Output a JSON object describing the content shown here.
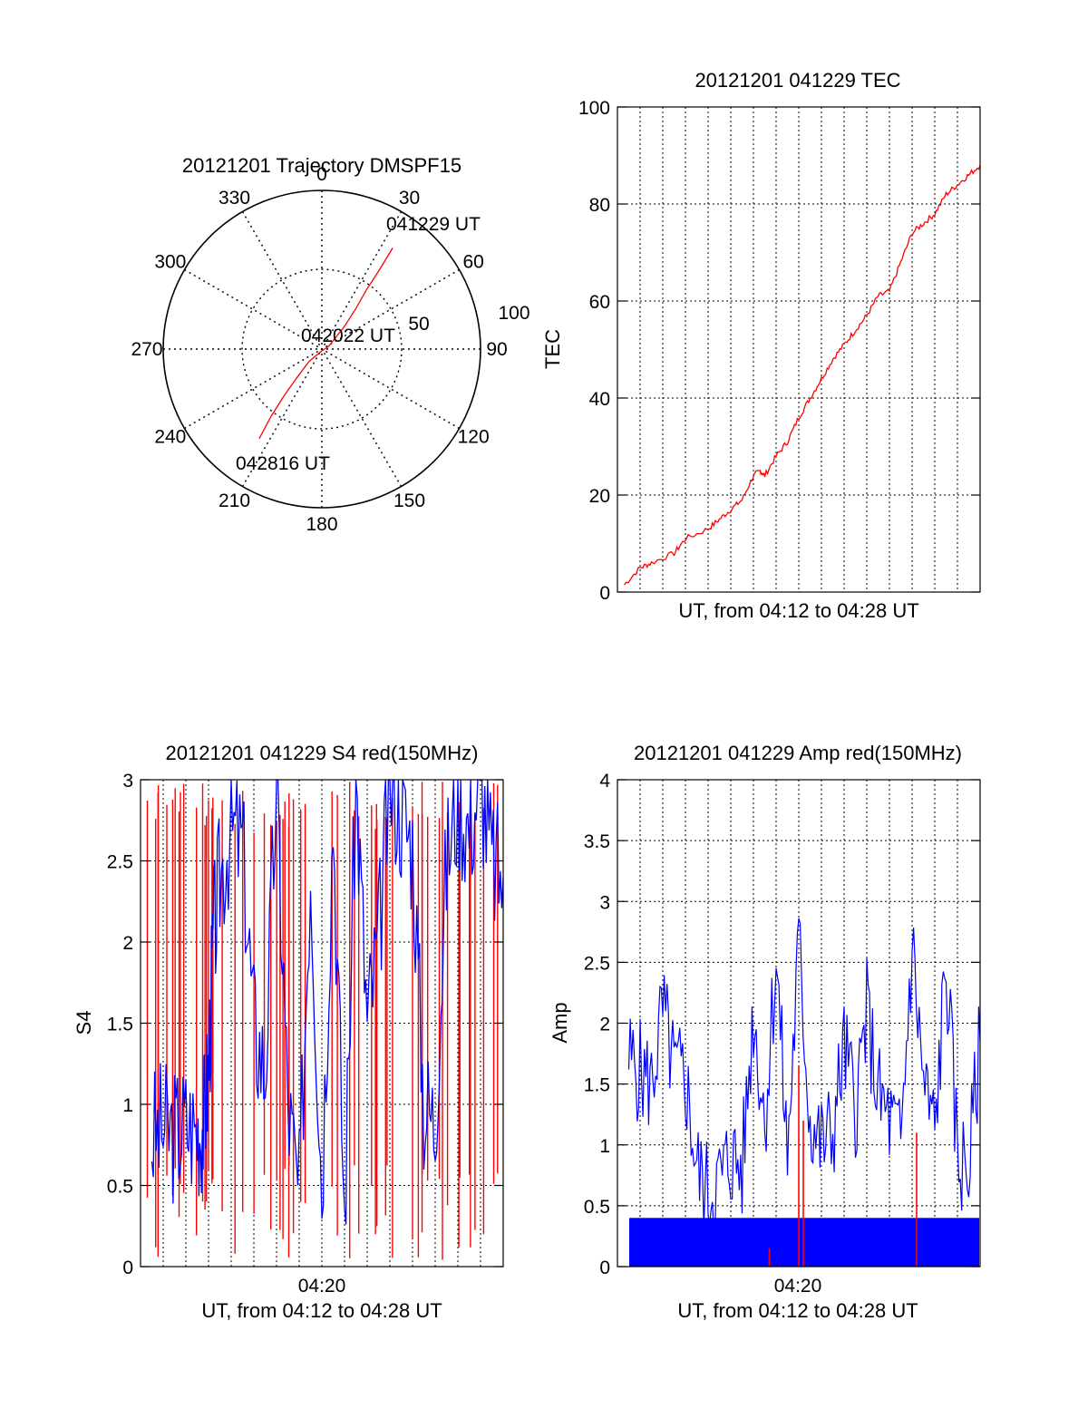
{
  "colors": {
    "primary": "#ff0000",
    "secondary": "#0000ff",
    "axis": "#000000"
  },
  "chart_data": [
    {
      "type": "polar",
      "title": "20121201 Trajectory DMSPF15",
      "angle_ticks": [
        "0",
        "30",
        "60",
        "90",
        "120",
        "150",
        "180",
        "210",
        "240",
        "270",
        "300",
        "330"
      ],
      "radial_ticks": [
        "50",
        "100"
      ],
      "grid": true,
      "annotations": [
        "041229 UT",
        "042022 UT",
        "042816 UT"
      ],
      "series": [
        {
          "color": "#ff0000",
          "points": [
            {
              "azimuth": 35,
              "elevation": 20
            },
            {
              "azimuth": 36,
              "elevation": 35
            },
            {
              "azimuth": 37,
              "elevation": 48
            },
            {
              "azimuth": 40,
              "elevation": 60
            },
            {
              "azimuth": 45,
              "elevation": 72
            },
            {
              "azimuth": 70,
              "elevation": 86
            },
            {
              "azimuth": 180,
              "elevation": 89
            },
            {
              "azimuth": 226,
              "elevation": 80
            },
            {
              "azimuth": 221,
              "elevation": 68
            },
            {
              "azimuth": 219,
              "elevation": 56
            },
            {
              "azimuth": 217,
              "elevation": 42
            },
            {
              "azimuth": 215,
              "elevation": 28
            }
          ]
        }
      ]
    },
    {
      "type": "line",
      "title": "20121201 041229 TEC",
      "xlabel": "UT, from 04:12 to 04:28 UT",
      "ylabel": "TEC",
      "xlim": [
        0,
        16
      ],
      "ylim": [
        0,
        100
      ],
      "yticks": [
        "0",
        "20",
        "40",
        "60",
        "80",
        "100"
      ],
      "grid": true,
      "series": [
        {
          "color": "#ff0000",
          "x": [
            0.3,
            1.0,
            1.5,
            2.5,
            3.0,
            4.0,
            4.5,
            5.0,
            5.5,
            6.0,
            6.3,
            6.5,
            7.0,
            7.5,
            8.0,
            8.5,
            9.0,
            9.5,
            10.0,
            10.5,
            11.0,
            11.5,
            12.0,
            12.5,
            13.0,
            13.5,
            14.0,
            14.5,
            15.0,
            15.5,
            16.0
          ],
          "y": [
            1.5,
            5,
            6,
            8,
            11,
            13,
            15,
            17,
            19,
            24,
            25,
            24,
            28,
            31,
            36,
            40,
            44,
            48,
            51,
            54,
            57,
            61,
            62,
            68,
            74,
            76,
            78,
            82,
            84,
            86,
            88
          ]
        }
      ]
    },
    {
      "type": "line",
      "title": "20121201 041229 S4 red(150MHz)",
      "xlabel": "UT, from 04:12 to 04:28 UT",
      "ylabel": "S4",
      "xlim": [
        0,
        16
      ],
      "ylim": [
        0,
        3
      ],
      "xticks": [
        "04:20"
      ],
      "yticks": [
        "0",
        "0.5",
        "1",
        "1.5",
        "2",
        "2.5",
        "3"
      ],
      "grid": true,
      "series": [
        {
          "color": "#0000ff",
          "x": [
            0.5,
            1.0,
            1.5,
            2.0,
            2.5,
            2.8,
            3.0,
            3.2,
            3.5,
            4.0,
            4.5,
            5.0,
            5.5,
            6.0,
            6.5,
            7.0,
            7.5,
            8.0,
            8.5,
            9.0,
            9.5,
            10.0,
            10.5,
            11.0,
            11.5,
            12.0,
            12.5,
            13.0,
            13.5,
            14.0,
            14.5,
            15.0,
            15.5,
            16.0
          ],
          "y": [
            0.8,
            0.85,
            0.82,
            0.88,
            0.85,
            0.9,
            1.2,
            2.0,
            2.4,
            2.7,
            2.6,
            1.5,
            1.2,
            3.0,
            1.0,
            0.4,
            2.5,
            0.5,
            2.8,
            0.3,
            3.0,
            1.5,
            2.0,
            3.0,
            2.8,
            2.6,
            1.0,
            0.9,
            2.5,
            2.9,
            2.7,
            3.0,
            2.5,
            2.4
          ]
        }
      ]
    },
    {
      "type": "bar",
      "title": "20121201 041229 Amp red(150MHz)",
      "xlabel": "UT, from 04:12 to 04:28 UT",
      "ylabel": "Amp",
      "xlim": [
        0,
        16
      ],
      "ylim": [
        0,
        4
      ],
      "xticks": [
        "04:20"
      ],
      "yticks": [
        "0",
        "0.5",
        "1",
        "1.5",
        "2",
        "2.5",
        "3",
        "3.5",
        "4"
      ],
      "grid": true,
      "series": [
        {
          "color": "#0000ff",
          "x": [
            0.5,
            1.0,
            1.5,
            2.0,
            2.5,
            3.0,
            3.5,
            4.0,
            4.5,
            5.0,
            5.5,
            6.0,
            6.5,
            7.0,
            7.5,
            8.0,
            8.5,
            9.0,
            9.5,
            10.0,
            10.5,
            11.0,
            11.5,
            12.0,
            12.5,
            13.0,
            13.5,
            14.0,
            14.5,
            15.0,
            15.5,
            16.0
          ],
          "y": [
            1.7,
            1.6,
            1.5,
            2.1,
            1.6,
            1.55,
            0.8,
            0.6,
            0.7,
            0.9,
            0.8,
            2.1,
            1.2,
            2.55,
            0.9,
            2.65,
            1.2,
            1.0,
            1.1,
            1.8,
            1.3,
            2.1,
            1.4,
            1.2,
            1.0,
            2.65,
            1.5,
            1.1,
            2.5,
            0.9,
            0.8,
            1.85
          ]
        },
        {
          "color": "#ff0000",
          "x": [
            8.0,
            8.2,
            6.7,
            13.2
          ],
          "y": [
            1.65,
            1.2,
            0.15,
            1.1
          ]
        }
      ]
    }
  ]
}
